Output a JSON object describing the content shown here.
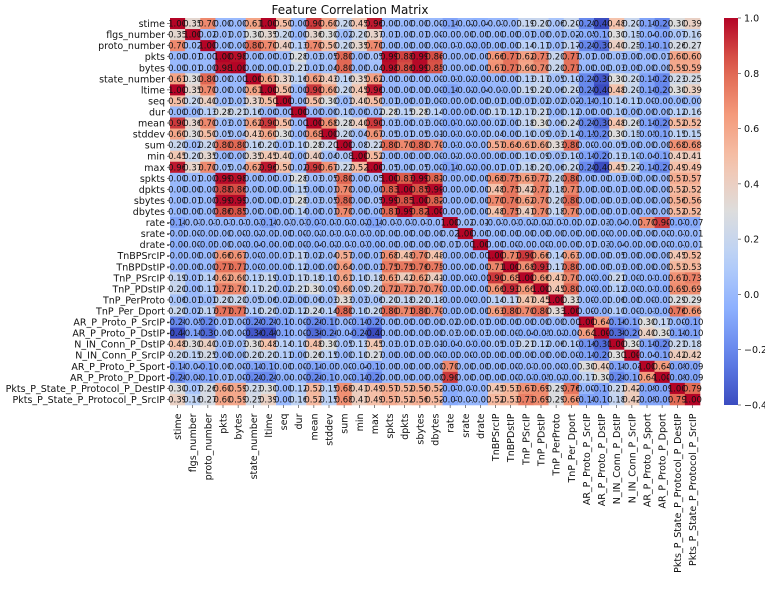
{
  "chart_data": {
    "type": "heatmap",
    "title": "Feature Correlation Matrix",
    "xlabel": "",
    "ylabel": "",
    "features": [
      "stime",
      "flgs_number",
      "proto_number",
      "pkts",
      "bytes",
      "state_number",
      "ltime",
      "seq",
      "dur",
      "mean",
      "stddev",
      "sum",
      "min",
      "max",
      "spkts",
      "dpkts",
      "sbytes",
      "dbytes",
      "rate",
      "srate",
      "drate",
      "TnBPSrcIP",
      "TnBPDstIP",
      "TnP_PSrcIP",
      "TnP_PDstIP",
      "TnP_PerProto",
      "TnP_Per_Dport",
      "AR_P_Proto_P_SrcIP",
      "AR_P_Proto_P_DstIP",
      "N_IN_Conn_P_DstIP",
      "N_IN_Conn_P_SrcIP",
      "AR_P_Proto_P_Sport",
      "AR_P_Proto_P_Dport",
      "Pkts_P_State_P_Protocol_P_DestIP",
      "Pkts_P_State_P_Protocol_P_SrcIP"
    ],
    "value_range": [
      -0.4,
      1.0
    ],
    "colormap": "coolwarm",
    "colorbar_ticks": [
      "1.0",
      "0.8",
      "0.6",
      "0.4",
      "0.2",
      "0.0",
      "−0.2",
      "−0.4"
    ],
    "colorbar_tick_values": [
      1.0,
      0.8,
      0.6,
      0.4,
      0.2,
      0.0,
      -0.2,
      -0.4
    ],
    "annotation_decimals": 2,
    "matrix": [
      [
        1.0,
        0.35,
        0.7,
        0.0,
        0.0,
        0.61,
        1.0,
        0.5,
        0.0,
        0.9,
        0.6,
        0.2,
        0.45,
        0.96,
        0.0,
        0.0,
        0.0,
        0.0,
        -0.1,
        -0.02,
        -0.04,
        -0.01,
        -0.01,
        0.19,
        0.2,
        0.06,
        0.2,
        -0.2,
        -0.4,
        0.48,
        0.2,
        -0.1,
        -0.2,
        0.3,
        0.39
      ],
      [
        0.35,
        1.0,
        0.02,
        0.01,
        0.01,
        0.3,
        0.35,
        0.2,
        0.0,
        0.36,
        0.3,
        0.02,
        0.2,
        0.37,
        0.01,
        0.0,
        0.01,
        0.0,
        -0.01,
        0.0,
        0.0,
        0.0,
        0.0,
        0.01,
        0.0,
        0.01,
        0.02,
        -0.05,
        -0.1,
        0.3,
        0.15,
        -0.04,
        -0.08,
        0.07,
        0.16
      ],
      [
        0.7,
        0.02,
        1.0,
        0.0,
        0.0,
        0.8,
        0.7,
        0.4,
        0.13,
        0.7,
        0.5,
        0.2,
        0.35,
        0.7,
        0.0,
        0.0,
        0.0,
        0.0,
        -0.01,
        -0.02,
        -0.05,
        0.0,
        0.0,
        0.14,
        0.11,
        0.01,
        0.17,
        -0.2,
        -0.3,
        0.4,
        0.25,
        -0.1,
        -0.1,
        0.26,
        0.27
      ],
      [
        0.0,
        0.01,
        0.0,
        1.0,
        0.98,
        0.0,
        0.0,
        0.01,
        0.28,
        0.03,
        0.05,
        0.8,
        0.0,
        0.05,
        0.99,
        0.88,
        0.99,
        0.86,
        -0.01,
        0.0,
        0.0,
        0.66,
        0.77,
        0.62,
        0.73,
        0.2,
        0.77,
        0.01,
        0.0,
        0.03,
        0.0,
        0.0,
        0.01,
        0.6,
        0.6
      ],
      [
        0.0,
        0.01,
        0.0,
        0.98,
        1.0,
        0.0,
        0.0,
        0.01,
        0.21,
        0.01,
        0.04,
        0.8,
        0.0,
        0.04,
        0.98,
        0.86,
        0.99,
        0.85,
        -0.01,
        0.0,
        0.0,
        0.67,
        0.77,
        0.6,
        0.7,
        0.2,
        0.77,
        0.0,
        0.0,
        0.03,
        0.0,
        0.0,
        0.0,
        0.59,
        0.59
      ],
      [
        0.61,
        0.3,
        0.8,
        0.0,
        0.0,
        1.0,
        0.61,
        0.37,
        0.16,
        0.62,
        0.43,
        0.16,
        0.35,
        0.62,
        0.0,
        0.0,
        0.0,
        0.0,
        -0.03,
        -0.02,
        -0.04,
        0.0,
        0.0,
        0.13,
        0.17,
        0.05,
        0.1,
        -0.2,
        -0.36,
        0.3,
        0.2,
        -0.1,
        -0.2,
        0.23,
        0.25
      ],
      [
        1.0,
        0.35,
        0.7,
        0.0,
        0.0,
        0.61,
        1.0,
        0.5,
        0.0,
        0.9,
        0.6,
        0.2,
        0.45,
        0.96,
        0.0,
        0.0,
        0.0,
        0.0,
        -0.1,
        -0.02,
        -0.04,
        -0.01,
        -0.01,
        0.19,
        0.2,
        0.06,
        0.2,
        -0.2,
        -0.4,
        0.48,
        0.2,
        -0.1,
        -0.2,
        0.3,
        0.39
      ],
      [
        0.5,
        0.2,
        0.4,
        0.01,
        0.01,
        0.37,
        0.5,
        1.0,
        0.0,
        0.5,
        0.3,
        0.01,
        0.4,
        0.5,
        0.01,
        0.0,
        0.01,
        0.0,
        -0.01,
        0.0,
        0.0,
        0.01,
        0.0,
        0.01,
        0.02,
        0.02,
        0.02,
        -0.1,
        -0.1,
        0.14,
        0.11,
        0.0,
        -0.04,
        0.0,
        0.0
      ],
      [
        0.0,
        0.0,
        0.13,
        0.28,
        0.21,
        0.16,
        0.0,
        0.0,
        1.0,
        0.0,
        0.0,
        0.1,
        0.0,
        0.02,
        0.28,
        0.15,
        0.28,
        0.14,
        -0.01,
        0.0,
        0.0,
        0.17,
        0.12,
        0.17,
        0.21,
        0.0,
        0.12,
        0.0,
        0.0,
        0.1,
        0.0,
        0.0,
        0.0,
        0.12,
        0.16
      ],
      [
        0.9,
        0.36,
        0.7,
        0.03,
        0.01,
        0.62,
        0.9,
        0.5,
        0.0,
        1.0,
        0.68,
        0.28,
        0.4,
        0.9,
        0.03,
        0.0,
        0.03,
        0.0,
        -0.07,
        -0.02,
        -0.04,
        0.02,
        0.0,
        0.18,
        0.3,
        0.06,
        0.24,
        -0.2,
        -0.3,
        0.48,
        0.26,
        -0.1,
        -0.2,
        0.52,
        0.52
      ],
      [
        0.6,
        0.3,
        0.5,
        0.05,
        0.04,
        0.43,
        0.6,
        0.3,
        0.0,
        0.68,
        1.0,
        0.2,
        0.04,
        0.67,
        0.05,
        0.01,
        0.05,
        0.01,
        -0.03,
        -0.01,
        -0.02,
        0.04,
        0.0,
        0.1,
        0.09,
        0.03,
        0.14,
        -0.15,
        -0.2,
        0.3,
        0.15,
        -0.05,
        -0.1,
        0.15,
        0.15
      ],
      [
        0.2,
        0.02,
        0.2,
        0.8,
        0.8,
        0.16,
        0.2,
        0.01,
        0.1,
        0.28,
        0.2,
        1.0,
        0.08,
        0.22,
        0.8,
        0.7,
        0.8,
        0.7,
        -0.03,
        -0.01,
        -0.01,
        0.57,
        0.64,
        0.61,
        0.6,
        0.33,
        0.8,
        0.0,
        -0.04,
        0.05,
        0.0,
        0.0,
        0.0,
        0.68,
        0.68
      ],
      [
        0.45,
        0.2,
        0.35,
        0.0,
        0.0,
        0.35,
        0.45,
        0.4,
        0.0,
        0.4,
        0.04,
        0.08,
        1.0,
        0.52,
        0.0,
        0.0,
        0.0,
        0.0,
        -0.02,
        -0.01,
        -0.01,
        0.0,
        0.0,
        0.1,
        0.09,
        0.03,
        0.1,
        -0.1,
        -0.2,
        0.13,
        0.1,
        -0.04,
        -0.1,
        0.41,
        0.41
      ],
      [
        0.96,
        0.37,
        0.7,
        0.05,
        0.04,
        0.62,
        0.96,
        0.5,
        0.02,
        0.9,
        0.67,
        0.22,
        0.52,
        1.0,
        0.05,
        0.0,
        0.05,
        0.0,
        -0.1,
        -0.02,
        -0.04,
        0.01,
        0.01,
        0.18,
        0.2,
        0.06,
        0.2,
        -0.2,
        -0.4,
        0.45,
        0.27,
        -0.1,
        -0.2,
        0.49,
        0.49
      ],
      [
        0.0,
        0.01,
        0.0,
        0.99,
        0.98,
        0.0,
        0.0,
        0.01,
        0.28,
        0.03,
        0.05,
        0.8,
        0.0,
        0.05,
        1.0,
        0.83,
        0.99,
        0.81,
        -0.01,
        0.0,
        0.0,
        0.68,
        0.75,
        0.63,
        0.72,
        0.2,
        0.8,
        0.0,
        0.0,
        0.03,
        0.0,
        0.0,
        0.0,
        0.57,
        0.57
      ],
      [
        0.0,
        0.0,
        0.0,
        0.88,
        0.86,
        0.0,
        0.0,
        0.0,
        0.15,
        0.0,
        0.01,
        0.7,
        0.0,
        0.0,
        0.83,
        1.0,
        0.85,
        0.99,
        -0.01,
        0.0,
        0.0,
        0.48,
        0.75,
        0.42,
        0.72,
        0.18,
        0.71,
        0.0,
        0.0,
        0.01,
        0.0,
        0.0,
        0.0,
        0.52,
        0.52
      ],
      [
        0.0,
        0.01,
        0.0,
        0.99,
        0.99,
        0.0,
        0.0,
        0.01,
        0.28,
        0.03,
        0.05,
        0.8,
        0.0,
        0.05,
        0.99,
        0.85,
        1.0,
        0.82,
        -0.01,
        0.0,
        0.0,
        0.7,
        0.76,
        0.62,
        0.7,
        0.2,
        0.8,
        0.0,
        0.0,
        0.03,
        0.0,
        0.0,
        0.0,
        0.56,
        0.56
      ],
      [
        0.0,
        0.0,
        0.0,
        0.86,
        0.85,
        0.0,
        0.0,
        0.0,
        0.14,
        0.0,
        0.01,
        0.7,
        0.0,
        0.0,
        0.81,
        0.99,
        0.82,
        1.0,
        -0.01,
        0.0,
        0.0,
        0.48,
        0.75,
        0.41,
        0.7,
        0.18,
        0.7,
        0.0,
        0.0,
        0.01,
        0.0,
        0.0,
        0.0,
        0.52,
        0.52
      ],
      [
        -0.1,
        -0.01,
        -0.01,
        -0.01,
        -0.01,
        -0.03,
        -0.1,
        -0.01,
        -0.01,
        -0.07,
        -0.03,
        -0.03,
        -0.02,
        -0.1,
        -0.01,
        -0.01,
        -0.01,
        -0.01,
        1.0,
        0.02,
        0.01,
        -0.01,
        -0.01,
        -0.02,
        -0.02,
        -0.01,
        -0.02,
        0.02,
        0.03,
        -0.04,
        -0.02,
        0.7,
        0.9,
        -0.07,
        -0.07
      ],
      [
        -0.02,
        0.0,
        -0.02,
        0.0,
        0.0,
        -0.02,
        -0.02,
        0.0,
        0.0,
        -0.02,
        -0.01,
        -0.01,
        -0.01,
        -0.02,
        0.0,
        0.0,
        0.0,
        0.0,
        0.02,
        1.0,
        0.0,
        0.0,
        0.0,
        0.0,
        0.0,
        0.0,
        0.0,
        0.0,
        0.0,
        -0.01,
        0.0,
        0.0,
        0.0,
        -0.01,
        -0.01
      ],
      [
        -0.04,
        0.0,
        -0.05,
        0.0,
        0.0,
        -0.04,
        -0.04,
        0.0,
        0.0,
        -0.04,
        -0.02,
        -0.01,
        -0.01,
        -0.04,
        0.0,
        0.0,
        0.0,
        0.0,
        0.01,
        0.0,
        1.0,
        0.0,
        0.0,
        -0.01,
        0.0,
        -0.01,
        0.0,
        0.01,
        0.03,
        -0.04,
        -0.02,
        0.0,
        0.0,
        -0.01,
        -0.01
      ],
      [
        -0.01,
        0.0,
        0.0,
        0.66,
        0.67,
        0.0,
        -0.01,
        0.01,
        0.17,
        0.02,
        0.04,
        0.57,
        0.0,
        0.01,
        0.68,
        0.48,
        0.7,
        0.48,
        -0.01,
        0.0,
        0.0,
        1.0,
        0.71,
        0.9,
        0.66,
        0.14,
        0.63,
        0.0,
        0.0,
        0.05,
        0.0,
        0.0,
        0.0,
        0.45,
        0.52
      ],
      [
        -0.01,
        0.0,
        0.0,
        0.77,
        0.77,
        0.0,
        -0.01,
        0.0,
        0.12,
        0.0,
        0.0,
        0.64,
        0.0,
        0.01,
        0.75,
        0.75,
        0.76,
        0.75,
        -0.01,
        0.0,
        0.0,
        0.71,
        1.0,
        0.68,
        0.93,
        0.17,
        0.8,
        0.0,
        0.0,
        0.03,
        0.0,
        0.0,
        0.0,
        0.53,
        0.53
      ],
      [
        0.19,
        0.01,
        0.14,
        0.62,
        0.6,
        0.13,
        0.19,
        0.01,
        0.17,
        0.18,
        0.1,
        0.61,
        0.1,
        0.18,
        0.63,
        0.42,
        0.62,
        0.41,
        -0.02,
        0.0,
        -0.01,
        0.9,
        0.68,
        1.0,
        0.66,
        0.47,
        0.7,
        0.0,
        -0.04,
        0.21,
        0.0,
        -0.01,
        -0.03,
        0.67,
        0.73
      ],
      [
        0.2,
        0.0,
        0.11,
        0.73,
        0.7,
        0.17,
        0.2,
        0.02,
        0.21,
        0.3,
        0.09,
        0.6,
        0.09,
        0.2,
        0.72,
        0.72,
        0.7,
        0.7,
        -0.02,
        0.0,
        0.0,
        0.66,
        0.93,
        0.66,
        1.0,
        0.45,
        0.8,
        0.0,
        -0.05,
        0.12,
        0.0,
        -0.01,
        -0.05,
        0.69,
        0.69
      ],
      [
        0.06,
        0.01,
        0.01,
        0.2,
        0.2,
        0.05,
        0.06,
        0.02,
        0.0,
        0.06,
        0.03,
        0.33,
        0.03,
        0.06,
        0.2,
        0.18,
        0.2,
        0.18,
        -0.01,
        0.0,
        -0.01,
        0.14,
        0.17,
        0.47,
        0.45,
        1.0,
        0.33,
        0.0,
        -0.02,
        0.06,
        0.0,
        0.0,
        -0.02,
        0.29,
        0.29
      ],
      [
        0.2,
        0.02,
        0.17,
        0.77,
        0.77,
        0.1,
        0.2,
        0.02,
        0.12,
        0.24,
        0.14,
        0.8,
        0.1,
        0.2,
        0.8,
        0.71,
        0.8,
        0.7,
        -0.02,
        0.0,
        0.0,
        0.63,
        0.8,
        0.7,
        0.8,
        0.33,
        1.0,
        0.0,
        -0.04,
        0.1,
        0.0,
        -0.01,
        -0.04,
        0.76,
        0.66
      ],
      [
        -0.2,
        -0.05,
        -0.2,
        0.01,
        0.0,
        -0.2,
        -0.2,
        -0.1,
        0.0,
        -0.2,
        -0.15,
        0.0,
        -0.1,
        -0.2,
        0.0,
        0.0,
        0.0,
        0.0,
        0.02,
        0.0,
        0.01,
        0.0,
        0.0,
        0.0,
        0.0,
        0.0,
        0.0,
        1.0,
        0.64,
        -0.16,
        -0.1,
        0.3,
        0.17,
        0.0,
        -0.1
      ],
      [
        -0.4,
        -0.1,
        -0.3,
        0.0,
        0.0,
        -0.36,
        -0.4,
        -0.1,
        0.0,
        -0.3,
        -0.2,
        -0.04,
        -0.2,
        -0.4,
        0.0,
        0.0,
        0.0,
        0.0,
        0.03,
        0.0,
        0.03,
        0.0,
        0.0,
        -0.04,
        -0.05,
        -0.02,
        -0.04,
        0.64,
        1.0,
        -0.3,
        -0.2,
        0.4,
        0.3,
        -0.1,
        -0.1
      ],
      [
        0.48,
        0.3,
        0.4,
        0.03,
        0.03,
        0.3,
        0.48,
        0.14,
        0.1,
        0.48,
        0.3,
        0.05,
        0.13,
        0.45,
        0.03,
        0.01,
        0.03,
        0.01,
        -0.04,
        -0.01,
        -0.04,
        0.05,
        0.03,
        0.21,
        0.12,
        0.06,
        0.1,
        -0.16,
        -0.3,
        1.0,
        0.3,
        -0.1,
        -0.2,
        0.21,
        0.18
      ],
      [
        0.2,
        0.15,
        0.25,
        0.0,
        0.0,
        0.2,
        0.2,
        0.11,
        0.0,
        0.26,
        0.15,
        0.0,
        0.1,
        0.27,
        0.0,
        0.0,
        0.0,
        0.0,
        -0.02,
        0.0,
        -0.02,
        0.0,
        0.0,
        0.0,
        0.0,
        0.0,
        0.0,
        -0.1,
        -0.2,
        0.3,
        1.0,
        -0.04,
        -0.1,
        0.42,
        0.42
      ],
      [
        -0.1,
        -0.04,
        -0.1,
        0.0,
        0.0,
        -0.1,
        -0.1,
        0.0,
        0.0,
        -0.1,
        -0.05,
        0.0,
        -0.04,
        -0.1,
        0.0,
        0.0,
        0.0,
        0.0,
        0.7,
        0.0,
        0.0,
        0.0,
        0.0,
        -0.01,
        -0.01,
        0.0,
        -0.01,
        0.3,
        0.4,
        -0.1,
        -0.04,
        1.0,
        0.64,
        -0.09,
        -0.09
      ],
      [
        -0.2,
        -0.08,
        -0.1,
        0.01,
        0.0,
        -0.2,
        -0.2,
        -0.04,
        0.0,
        -0.2,
        -0.1,
        0.0,
        -0.1,
        -0.2,
        0.0,
        0.0,
        0.0,
        0.0,
        0.9,
        0.0,
        0.0,
        0.0,
        0.0,
        -0.03,
        -0.05,
        -0.02,
        -0.04,
        0.17,
        0.3,
        -0.2,
        -0.1,
        0.64,
        1.0,
        -0.09,
        -0.09
      ],
      [
        0.3,
        0.07,
        0.26,
        0.6,
        0.59,
        0.23,
        0.3,
        0.0,
        0.12,
        0.52,
        0.15,
        0.68,
        0.41,
        0.49,
        0.57,
        0.52,
        0.56,
        0.52,
        -0.07,
        -0.01,
        -0.01,
        0.45,
        0.53,
        0.67,
        0.69,
        0.29,
        0.76,
        0.0,
        -0.1,
        0.21,
        0.42,
        -0.09,
        -0.09,
        1.0,
        0.79
      ],
      [
        0.39,
        0.16,
        0.27,
        0.6,
        0.59,
        0.25,
        0.39,
        0.0,
        0.16,
        0.52,
        0.15,
        0.68,
        0.41,
        0.49,
        0.57,
        0.52,
        0.56,
        0.52,
        -0.07,
        -0.01,
        -0.01,
        0.52,
        0.53,
        0.73,
        0.69,
        0.29,
        0.66,
        -0.1,
        -0.1,
        0.18,
        0.42,
        -0.09,
        -0.09,
        0.79,
        1.0
      ]
    ]
  }
}
